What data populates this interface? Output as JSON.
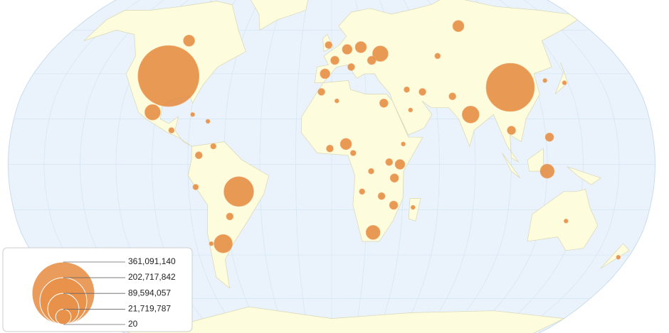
{
  "chart_data": {
    "type": "geo-bubble",
    "color": "#e4873b",
    "points": {
      "lon": [
        -98,
        105,
        79,
        -52,
        -64,
        31,
        -102,
        120,
        24,
        -95,
        90,
        8,
        19,
        38,
        -4,
        10,
        35,
        30,
        122,
        101,
        2,
        35,
        25,
        -2,
        12,
        -58,
        -74,
        -6,
        28,
        -1,
        70,
        53,
        32,
        -76,
        -66,
        22,
        17,
        12,
        67,
        44,
        -90,
        -71,
        40,
        3,
        45,
        46,
        138,
        127,
        134,
        174,
        -79,
        -70
      ],
      "lat": [
        39,
        34,
        22,
        -12,
        -35,
        49,
        23,
        -3,
        -30,
        55,
        62,
        9,
        52,
        0,
        40,
        51,
        -6,
        27,
        12,
        15,
        46,
        -18,
        46,
        53,
        43,
        -23,
        4,
        32,
        -14,
        7,
        30,
        32,
        1,
        -10,
        8,
        -3,
        -12,
        5,
        48,
        33,
        15,
        -35,
        9,
        28,
        24,
        -19,
        36,
        37,
        -25,
        -41,
        22,
        19
      ],
      "values": [
        345000000,
        215000000,
        27000000,
        82000000,
        31500000,
        22600000,
        22600000,
        18700000,
        18700000,
        11900000,
        11900000,
        11900000,
        11900000,
        9100000,
        9100000,
        9100000,
        6700000,
        6700000,
        6700000,
        6700000,
        6700000,
        6700000,
        6700000,
        4700000,
        4700000,
        4700000,
        4700000,
        4700000,
        4700000,
        4700000,
        4700000,
        4700000,
        4700000,
        3000000,
        3000000,
        3000000,
        3000000,
        3000000,
        3000000,
        3000000,
        3000000,
        1700000,
        1700000,
        1700000,
        1700000,
        1700000,
        1700000,
        1700000,
        1700000,
        1700000,
        1700000,
        1700000
      ]
    },
    "size_legend": [
      {
        "value": 361091140,
        "label": "361,091,140"
      },
      {
        "value": 202717842,
        "label": "202,717,842"
      },
      {
        "value": 89594057,
        "label": "89,594,057"
      },
      {
        "value": 21719787,
        "label": "21,719,787"
      },
      20
    ]
  }
}
